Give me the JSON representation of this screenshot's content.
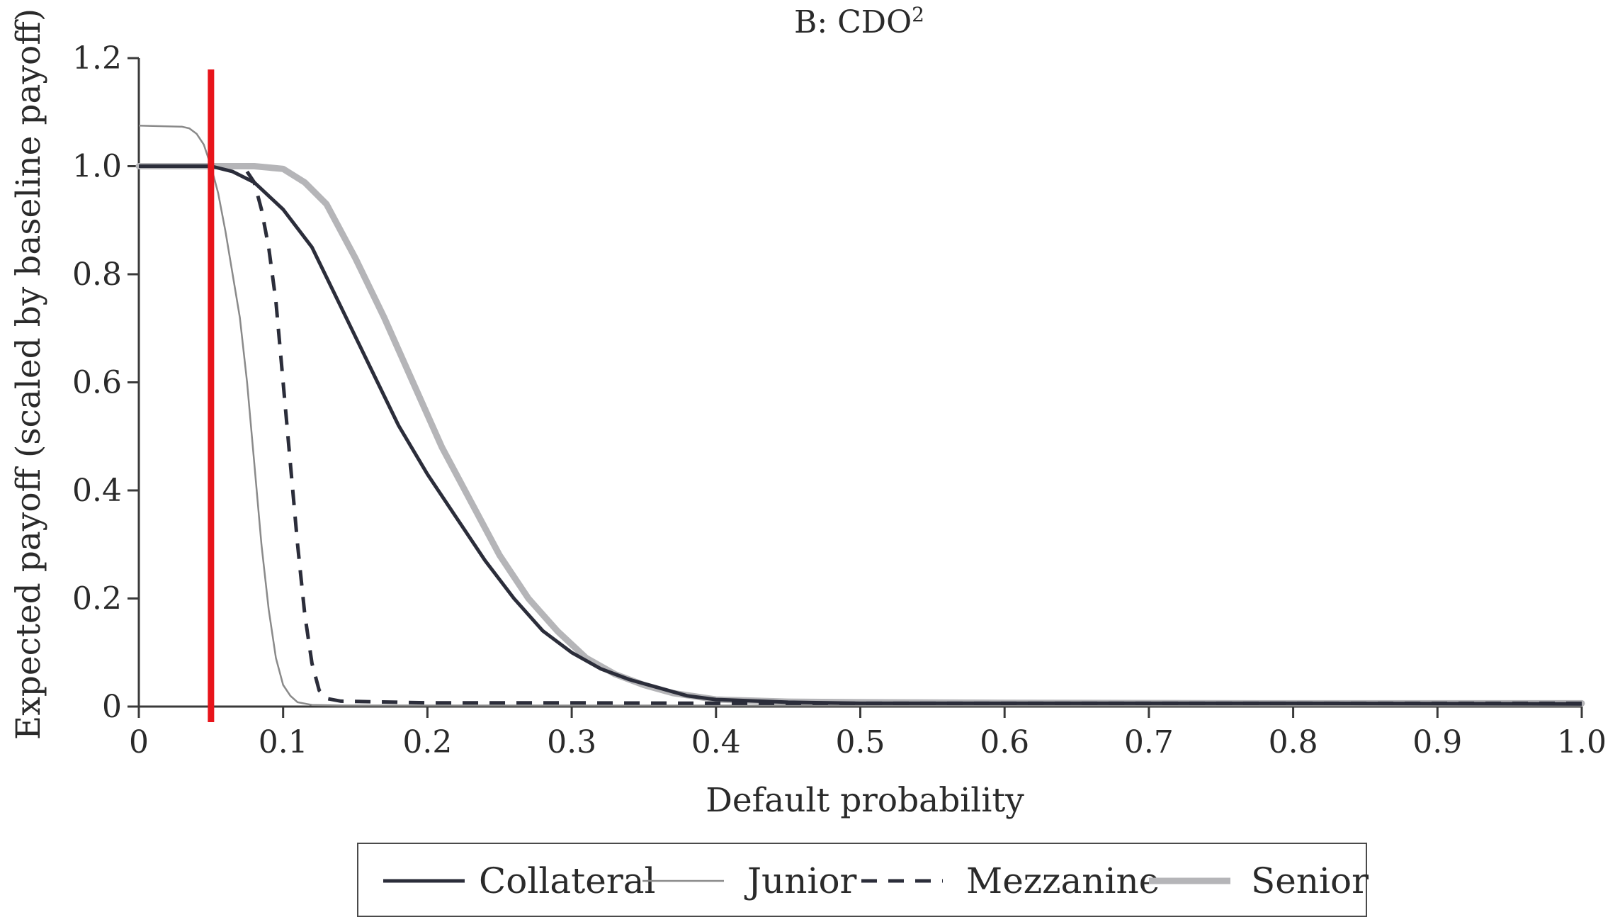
{
  "chart_data": {
    "type": "line",
    "title": "B: CDO",
    "title_superscript": "2",
    "xlabel": "Default probability",
    "ylabel": "Expected payoff (scaled by baseline payoff)",
    "xlim": [
      0,
      1.0
    ],
    "ylim": [
      0,
      1.2
    ],
    "x_ticks": [
      0,
      0.1,
      0.2,
      0.3,
      0.4,
      0.5,
      0.6,
      0.7,
      0.8,
      0.9,
      1.0
    ],
    "x_tick_labels": [
      "0",
      "0.1",
      "0.2",
      "0.3",
      "0.4",
      "0.5",
      "0.6",
      "0.7",
      "0.8",
      "0.9",
      "1.0"
    ],
    "y_ticks": [
      0,
      0.2,
      0.4,
      0.6,
      0.8,
      1.0,
      1.2
    ],
    "y_tick_labels": [
      "0",
      "0.2",
      "0.4",
      "0.6",
      "0.8",
      "1.0",
      "1.2"
    ],
    "grid": false,
    "legend_position": "bottom",
    "reference_line": {
      "x": 0.05,
      "color": "#e8141b"
    },
    "series": [
      {
        "name": "Collateral",
        "color": "#2b2d3a",
        "style": "solid",
        "points": [
          [
            0,
            1.0
          ],
          [
            0.05,
            1.0
          ],
          [
            0.065,
            0.99
          ],
          [
            0.08,
            0.97
          ],
          [
            0.1,
            0.92
          ],
          [
            0.12,
            0.85
          ],
          [
            0.14,
            0.74
          ],
          [
            0.16,
            0.63
          ],
          [
            0.18,
            0.52
          ],
          [
            0.2,
            0.43
          ],
          [
            0.22,
            0.35
          ],
          [
            0.24,
            0.27
          ],
          [
            0.26,
            0.2
          ],
          [
            0.28,
            0.14
          ],
          [
            0.3,
            0.1
          ],
          [
            0.32,
            0.07
          ],
          [
            0.34,
            0.05
          ],
          [
            0.36,
            0.035
          ],
          [
            0.38,
            0.02
          ],
          [
            0.4,
            0.013
          ],
          [
            0.45,
            0.008
          ],
          [
            0.5,
            0.006
          ],
          [
            0.6,
            0.006
          ],
          [
            0.8,
            0.006
          ],
          [
            1.0,
            0.005
          ]
        ]
      },
      {
        "name": "Junior",
        "color": "#8a8a8a",
        "style": "thin",
        "points": [
          [
            0,
            1.075
          ],
          [
            0.03,
            1.073
          ],
          [
            0.035,
            1.07
          ],
          [
            0.04,
            1.06
          ],
          [
            0.045,
            1.04
          ],
          [
            0.05,
            1.0
          ],
          [
            0.055,
            0.95
          ],
          [
            0.06,
            0.88
          ],
          [
            0.065,
            0.8
          ],
          [
            0.07,
            0.72
          ],
          [
            0.075,
            0.6
          ],
          [
            0.08,
            0.45
          ],
          [
            0.085,
            0.3
          ],
          [
            0.09,
            0.18
          ],
          [
            0.095,
            0.09
          ],
          [
            0.1,
            0.04
          ],
          [
            0.105,
            0.02
          ],
          [
            0.11,
            0.008
          ],
          [
            0.12,
            0.003
          ],
          [
            0.14,
            0.002
          ],
          [
            0.3,
            0.002
          ],
          [
            1.0,
            0.002
          ]
        ]
      },
      {
        "name": "Mezzanine",
        "color": "#2b2d3a",
        "style": "dashed",
        "points": [
          [
            0.075,
            0.99
          ],
          [
            0.08,
            0.97
          ],
          [
            0.085,
            0.92
          ],
          [
            0.09,
            0.85
          ],
          [
            0.095,
            0.75
          ],
          [
            0.1,
            0.6
          ],
          [
            0.105,
            0.45
          ],
          [
            0.11,
            0.3
          ],
          [
            0.115,
            0.17
          ],
          [
            0.12,
            0.08
          ],
          [
            0.125,
            0.03
          ],
          [
            0.13,
            0.015
          ],
          [
            0.14,
            0.01
          ],
          [
            0.2,
            0.007
          ],
          [
            0.3,
            0.007
          ],
          [
            0.4,
            0.006
          ],
          [
            0.5,
            0.006
          ],
          [
            1.0,
            0.006
          ]
        ]
      },
      {
        "name": "Senior",
        "color": "#b5b5b8",
        "style": "thick",
        "points": [
          [
            0,
            1.0
          ],
          [
            0.05,
            1.0
          ],
          [
            0.08,
            1.0
          ],
          [
            0.1,
            0.995
          ],
          [
            0.115,
            0.97
          ],
          [
            0.13,
            0.93
          ],
          [
            0.15,
            0.83
          ],
          [
            0.17,
            0.72
          ],
          [
            0.19,
            0.6
          ],
          [
            0.21,
            0.48
          ],
          [
            0.23,
            0.38
          ],
          [
            0.25,
            0.28
          ],
          [
            0.27,
            0.2
          ],
          [
            0.29,
            0.14
          ],
          [
            0.31,
            0.09
          ],
          [
            0.33,
            0.06
          ],
          [
            0.35,
            0.04
          ],
          [
            0.37,
            0.025
          ],
          [
            0.4,
            0.013
          ],
          [
            0.45,
            0.009
          ],
          [
            0.5,
            0.008
          ],
          [
            0.6,
            0.007
          ],
          [
            0.8,
            0.006
          ],
          [
            1.0,
            0.006
          ]
        ]
      }
    ]
  }
}
